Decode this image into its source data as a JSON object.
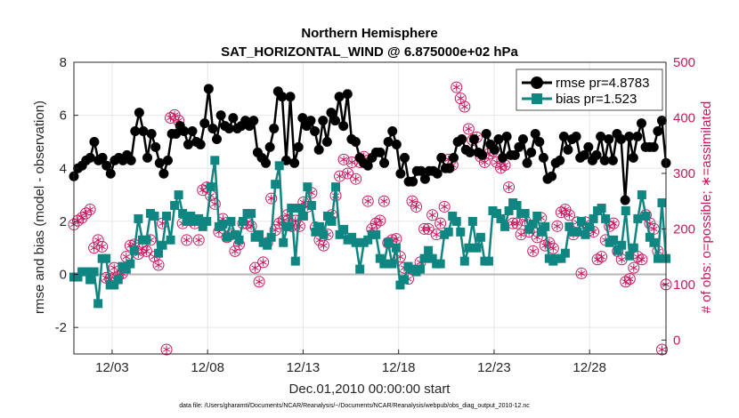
{
  "chart_data": {
    "type": "line",
    "title": "Northern Hemisphere",
    "subtitle": "SAT_HORIZONTAL_WIND @ 6.875000e+02 hPa",
    "xlabel": "Dec.01,2010 00:00:00 start",
    "ylabel": "rmse and bias (model - observation)",
    "y2label": "# of obs: o=possible; ∗=assimilated",
    "footnote": "data file: /Users/gharamti/Documents/NCAR/Reanalysis/~/Documents/NCAR/Reanalysis/webpub/obs_diag_output_2010-12.nc",
    "xlim": [
      0,
      124
    ],
    "ylim": [
      -3,
      8
    ],
    "y2lim": [
      -25,
      500
    ],
    "grid": true,
    "legend_position": "top-right",
    "x_ticks": [
      {
        "x": 8,
        "label": "12/03"
      },
      {
        "x": 28,
        "label": "12/08"
      },
      {
        "x": 48,
        "label": "12/13"
      },
      {
        "x": 68,
        "label": "12/18"
      },
      {
        "x": 88,
        "label": "12/23"
      },
      {
        "x": 108,
        "label": "12/28"
      }
    ],
    "y_ticks": [
      -2,
      0,
      2,
      4,
      6,
      8
    ],
    "y2_ticks": [
      0,
      100,
      200,
      300,
      400,
      500
    ],
    "series": [
      {
        "name": "rmse pr=4.8783",
        "color": "#000000",
        "values": [
          3.7,
          4.0,
          4.1,
          4.3,
          4.4,
          5.0,
          4.3,
          4.4,
          4.1,
          3.8,
          4.3,
          4.4,
          4.3,
          4.5,
          4.3,
          5.4,
          6.1,
          5.4,
          4.4,
          5.3,
          4.8,
          4.2,
          3.8,
          4.3,
          5.3,
          5.3,
          5.6,
          5.4,
          4.9,
          5.4,
          5.0,
          4.9,
          5.7,
          7.0,
          5.5,
          5.1,
          6.0,
          5.6,
          5.5,
          5.9,
          5.5,
          5.6,
          5.8,
          5.6,
          5.8,
          4.6,
          4.4,
          4.2,
          4.8,
          5.5,
          6.9,
          6.7,
          4.3,
          6.7,
          4.2,
          4.8,
          5.9,
          5.6,
          5.8,
          5.4,
          4.7,
          5.8,
          5.0,
          6.1,
          5.8,
          6.7,
          5.6,
          6.8,
          5.1,
          5.0,
          4.4,
          4.2,
          4.1,
          4.4,
          4.6,
          4.6,
          4.2,
          5.0,
          5.4,
          4.9,
          3.8,
          4.4,
          3.5,
          3.5,
          3.9,
          3.9,
          3.6,
          3.9,
          3.9,
          3.8,
          4.4,
          4.0,
          4.0,
          4.4,
          5.0,
          5.1,
          4.7,
          4.6,
          5.1,
          4.6,
          4.5,
          5.3,
          4.9,
          4.7,
          5.1,
          4.4,
          5.2,
          4.5,
          4.5,
          4.8,
          5.1,
          4.2,
          4.6,
          5.3,
          5.0,
          4.4,
          3.6,
          3.7,
          4.2,
          4.3,
          5.2,
          4.7,
          5.1,
          5.2,
          4.4,
          4.5,
          4.8,
          4.3,
          4.5,
          5.2,
          4.3,
          5.1,
          4.3,
          5.3,
          5.1,
          2.8,
          5.2,
          4.4,
          5.2,
          5.7,
          4.8,
          4.8,
          4.8,
          5.4,
          5.8,
          4.2
        ]
      },
      {
        "name": "bias pr=1.523",
        "color": "#0f8682",
        "values": [
          -0.1,
          -0.1,
          0.1,
          0.1,
          -0.2,
          0.1,
          -1.1,
          0.6,
          0.6,
          -0.4,
          -0.4,
          -0.2,
          0.3,
          0.2,
          0.4,
          0.9,
          2.1,
          1.3,
          1.3,
          2.3,
          2.2,
          0.8,
          1.1,
          2.2,
          1.3,
          2.6,
          3.0,
          2.3,
          2.0,
          2.2,
          2.0,
          2.1,
          1.8,
          2.0,
          3.3,
          4.3,
          1.8,
          1.9,
          1.4,
          2.0,
          1.5,
          1.3,
          2.0,
          2.3,
          2.3,
          1.4,
          1.5,
          1.2,
          1.1,
          1.4,
          3.4,
          4.1,
          1.2,
          1.8,
          2.5,
          0.5,
          2.5,
          2.2,
          3.3,
          2.6,
          1.6,
          1.8,
          1.5,
          2.2,
          2.0,
          3.3,
          1.5,
          1.7,
          1.3,
          1.4,
          1.2,
          0.2,
          1.2,
          1.3,
          1.5,
          1.5,
          0.6,
          0.4,
          1.2,
          0.4,
          1.0,
          -0.4,
          -0.2,
          0.3,
          0.2,
          0.1,
          0.2,
          0.6,
          0.9,
          0.6,
          0.4,
          0.4,
          1.5,
          1.6,
          2.2,
          2.0,
          1.6,
          0.5,
          1.0,
          2.0,
          1.0,
          1.4,
          0.5,
          0.5,
          2.4,
          2.3,
          2.1,
          1.8,
          2.4,
          2.7,
          2.6,
          2.3,
          2.3,
          1.7,
          1.9,
          2.2,
          1.6,
          1.8,
          0.6,
          0.5,
          0.6,
          0.6,
          0.8,
          1.8,
          1.6,
          1.6,
          2.0,
          1.5,
          1.8,
          2.1,
          2.4,
          2.5,
          2.1,
          1.2,
          1.3,
          0.9,
          1.1,
          2.4,
          0.7,
          1.0,
          2.1,
          3.0,
          2.2,
          1.4,
          1.2,
          0.6,
          2.7,
          0.6
        ]
      }
    ],
    "obs_possible": [
      208,
      215,
      220,
      228,
      235,
      166,
      180,
      168,
      112,
      110,
      130,
      115,
      120,
      150,
      170,
      172,
      155,
      165,
      160,
      180,
      150,
      135,
      210,
      -17,
      400,
      405,
      395,
      210,
      180,
      215,
      210,
      180,
      270,
      275,
      260,
      245,
      195,
      218,
      185,
      190,
      160,
      172,
      210,
      210,
      205,
      130,
      105,
      140,
      175,
      255,
      198,
      210,
      215,
      225,
      205,
      215,
      205,
      248,
      240,
      265,
      203,
      180,
      170,
      190,
      225,
      260,
      295,
      325,
      300,
      320,
      290,
      320,
      330,
      250,
      200,
      210,
      215,
      250,
      175,
      180,
      182,
      150,
      130,
      110,
      250,
      240,
      140,
      200,
      200,
      225,
      190,
      210,
      240,
      325,
      315,
      455,
      435,
      420,
      380,
      360,
      365,
      330,
      320,
      335,
      340,
      320,
      310,
      315,
      275,
      210,
      210,
      190,
      215,
      195,
      160,
      185,
      220,
      170,
      175,
      165,
      205,
      230,
      235,
      225,
      190,
      212,
      120,
      212,
      198,
      195,
      145,
      150,
      180,
      205,
      210,
      160,
      145,
      105,
      110,
      130,
      150,
      145,
      225,
      210,
      200,
      160,
      -17,
      100
    ],
    "obs_assimilated": [
      208,
      215,
      220,
      228,
      235,
      166,
      180,
      168,
      112,
      110,
      130,
      115,
      120,
      150,
      170,
      172,
      155,
      165,
      160,
      180,
      150,
      135,
      210,
      -17,
      400,
      405,
      395,
      210,
      180,
      215,
      210,
      180,
      270,
      275,
      260,
      245,
      195,
      218,
      185,
      190,
      160,
      172,
      210,
      210,
      205,
      130,
      105,
      140,
      175,
      255,
      198,
      210,
      215,
      225,
      205,
      215,
      205,
      248,
      240,
      265,
      203,
      180,
      170,
      190,
      225,
      260,
      295,
      325,
      300,
      320,
      290,
      320,
      330,
      250,
      200,
      210,
      215,
      250,
      175,
      180,
      182,
      150,
      130,
      110,
      250,
      240,
      140,
      200,
      200,
      225,
      190,
      210,
      240,
      325,
      315,
      455,
      435,
      420,
      380,
      360,
      365,
      330,
      320,
      335,
      340,
      320,
      310,
      315,
      275,
      210,
      210,
      190,
      215,
      195,
      160,
      185,
      220,
      170,
      175,
      165,
      205,
      230,
      235,
      225,
      190,
      212,
      120,
      212,
      198,
      195,
      145,
      150,
      180,
      205,
      210,
      160,
      145,
      105,
      110,
      130,
      150,
      145,
      225,
      210,
      200,
      160,
      -17,
      100
    ],
    "obs_color": "#c8175e"
  }
}
